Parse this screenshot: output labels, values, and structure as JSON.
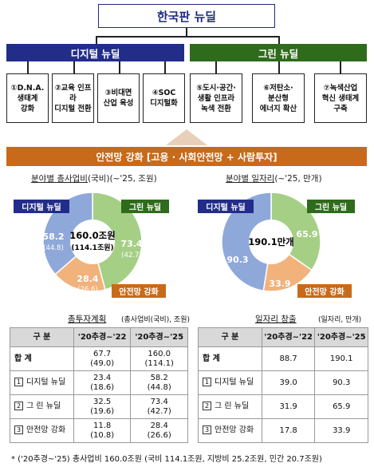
{
  "title": "한국판 뉴딜",
  "categories": {
    "digital": "디지털 뉴딜",
    "green": "그린 뉴딜"
  },
  "subprojects": [
    "①D.N.A.\n생태계\n강화",
    "②교육 인프라\n디지털 전환",
    "③비대면\n산업 육성",
    "④SOC\n디지털화",
    "⑤도시·공간·\n생활 인프라\n녹색 전환",
    "⑥저탄소·\n분산형\n에너지 확산",
    "⑦녹색산업\n혁신 생태계\n구축"
  ],
  "safety_bar": "안전망 강화 [고용 · 사회안전망 + 사람투자]",
  "left_chart": {
    "title_prefix": "분야별 총사업비",
    "title_suffix": "(국비)(~'25, 조원)",
    "center_main": "160.0조원",
    "center_sub": "(114.1조원)",
    "tags": {
      "digital": "디지털 뉴딜",
      "green": "그린 뉴딜",
      "safety": "안전망 강화"
    },
    "labels": {
      "digital_main": "58.2",
      "digital_sub": "(44.8)",
      "green_main": "73.4",
      "green_sub": "(42.7)",
      "safety_main": "28.4",
      "safety_sub": "(26.6)"
    }
  },
  "right_chart": {
    "title_prefix": "분야별 일자리",
    "title_suffix": "(~'25, 만개)",
    "center_main": "190.1만개",
    "tags": {
      "digital": "디지털 뉴딜",
      "green": "그린 뉴딜",
      "safety": "안전망 강화"
    },
    "labels": {
      "digital": "90.3",
      "green": "65.9",
      "safety": "33.9"
    }
  },
  "chart_data": [
    {
      "type": "pie",
      "title": "분야별 총사업비(국비)(~'25, 조원)",
      "categories": [
        "디지털 뉴딜",
        "그린 뉴딜",
        "안전망 강화"
      ],
      "series": [
        {
          "name": "총사업비",
          "values": [
            58.2,
            73.4,
            28.4
          ]
        },
        {
          "name": "국비",
          "values": [
            44.8,
            42.7,
            26.6
          ]
        }
      ],
      "total": 160.0,
      "total_gov": 114.1,
      "colors": [
        "#8fa8da",
        "#a6cf86",
        "#f1b27c"
      ]
    },
    {
      "type": "pie",
      "title": "분야별 일자리(~'25, 만개)",
      "categories": [
        "디지털 뉴딜",
        "그린 뉴딜",
        "안전망 강화"
      ],
      "values": [
        90.3,
        65.9,
        33.9
      ],
      "total": 190.1,
      "colors": [
        "#8fa8da",
        "#a6cf86",
        "#f1b27c"
      ]
    }
  ],
  "table_left": {
    "title": "총투자계획",
    "unit": "(총사업비(국비), 조원)",
    "headers": [
      "구 분",
      "'20추경~'22",
      "'20추경~'25"
    ],
    "total_label": "합 계",
    "total": [
      "67.7",
      "(49.0)",
      "160.0",
      "(114.1)"
    ],
    "rows": [
      {
        "num": "1",
        "label": "디지털 뉴딜",
        "a": "23.4",
        "a2": "(18.6)",
        "b": "58.2",
        "b2": "(44.8)"
      },
      {
        "num": "2",
        "label": "그 린 뉴딜",
        "a": "32.5",
        "a2": "(19.6)",
        "b": "73.4",
        "b2": "(42.7)"
      },
      {
        "num": "3",
        "label": "안전망 강화",
        "a": "11.8",
        "a2": "(10.8)",
        "b": "28.4",
        "b2": "(26.6)"
      }
    ]
  },
  "table_right": {
    "title": "일자리 창출",
    "unit": "(일자리, 만개)",
    "headers": [
      "구 분",
      "'20추경~'22",
      "'20추경~'25"
    ],
    "total_label": "합 계",
    "total": [
      "88.7",
      "190.1"
    ],
    "rows": [
      {
        "num": "1",
        "label": "디지털 뉴딜",
        "a": "39.0",
        "b": "90.3"
      },
      {
        "num": "2",
        "label": "그 린 뉴딜",
        "a": "31.9",
        "b": "65.9"
      },
      {
        "num": "3",
        "label": "안전망 강화",
        "a": "17.8",
        "b": "33.9"
      }
    ]
  },
  "footnote": "* ('20추경~'25) 총사업비 160.0조원 (국비 114.1조원, 지방비 25.2조원, 민간 20.7조원)"
}
